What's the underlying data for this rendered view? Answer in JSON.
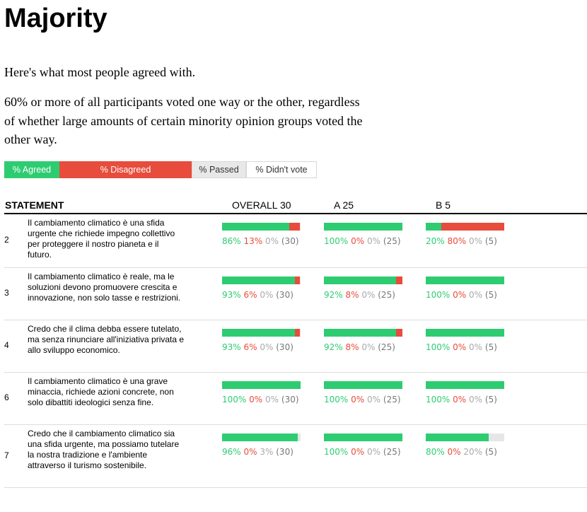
{
  "title": "Majority",
  "intro": "Here's what most people agreed with.",
  "description": "60% or more of all participants voted one way or the other, regardless of whether large amounts of certain minority opinion groups voted the other way.",
  "legend": {
    "agreed": "% Agreed",
    "disagreed": "% Disagreed",
    "passed": "% Passed",
    "no_vote": "% Didn't vote"
  },
  "colors": {
    "agree": "#2ecc71",
    "disagree": "#e74c3c",
    "pass": "#e6e6e6"
  },
  "table": {
    "headers": {
      "statement": "STATEMENT",
      "overall": "OVERALL 30",
      "a": "A 25",
      "b": "B 5"
    },
    "rows": [
      {
        "id": "2",
        "text": "Il cambiamento climatico è una sfida urgente che richiede impegno collettivo per proteggere il nostro pianeta e il futuro.",
        "groups": [
          {
            "agree": 86,
            "disagree": 13,
            "pass": 0,
            "n": 30,
            "agree_label": "86%",
            "disagree_label": "13%",
            "pass_label": "0%",
            "n_label": "(30)"
          },
          {
            "agree": 100,
            "disagree": 0,
            "pass": 0,
            "n": 25,
            "agree_label": "100%",
            "disagree_label": "0%",
            "pass_label": "0%",
            "n_label": "(25)"
          },
          {
            "agree": 20,
            "disagree": 80,
            "pass": 0,
            "n": 5,
            "agree_label": "20%",
            "disagree_label": "80%",
            "pass_label": "0%",
            "n_label": "(5)"
          }
        ]
      },
      {
        "id": "3",
        "text": "Il cambiamento climatico è reale, ma le soluzioni devono promuovere crescita e innovazione, non solo tasse e restrizioni.",
        "groups": [
          {
            "agree": 93,
            "disagree": 6,
            "pass": 0,
            "n": 30,
            "agree_label": "93%",
            "disagree_label": "6%",
            "pass_label": "0%",
            "n_label": "(30)"
          },
          {
            "agree": 92,
            "disagree": 8,
            "pass": 0,
            "n": 25,
            "agree_label": "92%",
            "disagree_label": "8%",
            "pass_label": "0%",
            "n_label": "(25)"
          },
          {
            "agree": 100,
            "disagree": 0,
            "pass": 0,
            "n": 5,
            "agree_label": "100%",
            "disagree_label": "0%",
            "pass_label": "0%",
            "n_label": "(5)"
          }
        ]
      },
      {
        "id": "4",
        "text": "Credo che il clima debba essere tutelato, ma senza rinunciare all'iniziativa privata e allo sviluppo economico.",
        "groups": [
          {
            "agree": 93,
            "disagree": 6,
            "pass": 0,
            "n": 30,
            "agree_label": "93%",
            "disagree_label": "6%",
            "pass_label": "0%",
            "n_label": "(30)"
          },
          {
            "agree": 92,
            "disagree": 8,
            "pass": 0,
            "n": 25,
            "agree_label": "92%",
            "disagree_label": "8%",
            "pass_label": "0%",
            "n_label": "(25)"
          },
          {
            "agree": 100,
            "disagree": 0,
            "pass": 0,
            "n": 5,
            "agree_label": "100%",
            "disagree_label": "0%",
            "pass_label": "0%",
            "n_label": "(5)"
          }
        ]
      },
      {
        "id": "6",
        "text": "Il cambiamento climatico è una grave minaccia, richiede azioni concrete, non solo dibattiti ideologici senza fine.",
        "groups": [
          {
            "agree": 100,
            "disagree": 0,
            "pass": 0,
            "n": 30,
            "agree_label": "100%",
            "disagree_label": "0%",
            "pass_label": "0%",
            "n_label": "(30)"
          },
          {
            "agree": 100,
            "disagree": 0,
            "pass": 0,
            "n": 25,
            "agree_label": "100%",
            "disagree_label": "0%",
            "pass_label": "0%",
            "n_label": "(25)"
          },
          {
            "agree": 100,
            "disagree": 0,
            "pass": 0,
            "n": 5,
            "agree_label": "100%",
            "disagree_label": "0%",
            "pass_label": "0%",
            "n_label": "(5)"
          }
        ]
      },
      {
        "id": "7",
        "text": "Credo che il cambiamento climatico sia una sfida urgente, ma possiamo tutelare la nostra tradizione e l'ambiente attraverso il turismo sostenibile.",
        "groups": [
          {
            "agree": 96,
            "disagree": 0,
            "pass": 3,
            "n": 30,
            "agree_label": "96%",
            "disagree_label": "0%",
            "pass_label": "3%",
            "n_label": "(30)"
          },
          {
            "agree": 100,
            "disagree": 0,
            "pass": 0,
            "n": 25,
            "agree_label": "100%",
            "disagree_label": "0%",
            "pass_label": "0%",
            "n_label": "(25)"
          },
          {
            "agree": 80,
            "disagree": 0,
            "pass": 20,
            "n": 5,
            "agree_label": "80%",
            "disagree_label": "0%",
            "pass_label": "20%",
            "n_label": "(5)"
          }
        ]
      }
    ]
  }
}
